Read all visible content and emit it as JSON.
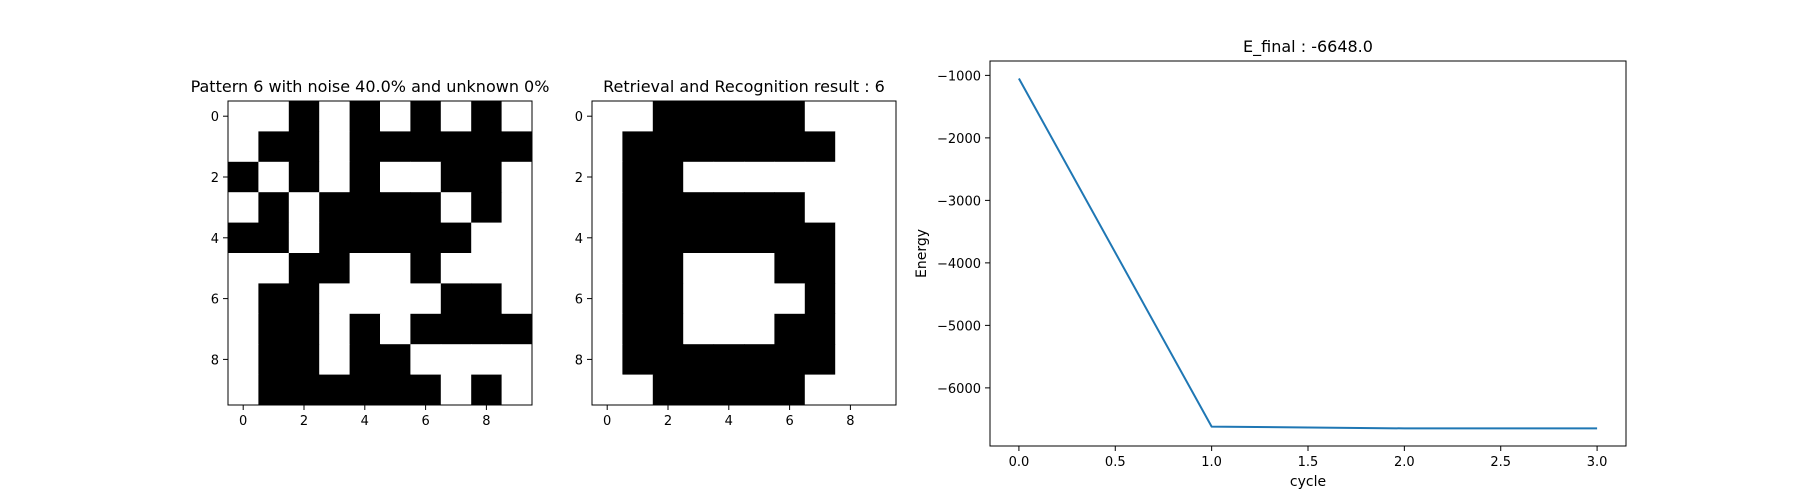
{
  "chart_data": [
    {
      "type": "heatmap",
      "title": "Pattern 6 with noise 40.0% and unknown 0%",
      "x_ticks": [
        0,
        2,
        4,
        6,
        8
      ],
      "y_ticks": [
        0,
        2,
        4,
        6,
        8
      ],
      "colors": {
        "1": "#000000",
        "0": "#ffffff"
      },
      "grid": [
        [
          0,
          0,
          1,
          0,
          1,
          0,
          1,
          0,
          1,
          0
        ],
        [
          0,
          1,
          1,
          0,
          1,
          1,
          1,
          1,
          1,
          1
        ],
        [
          1,
          0,
          1,
          0,
          1,
          0,
          0,
          1,
          1,
          0
        ],
        [
          0,
          1,
          0,
          1,
          1,
          1,
          1,
          0,
          1,
          0
        ],
        [
          1,
          1,
          0,
          1,
          1,
          1,
          1,
          1,
          0,
          0
        ],
        [
          0,
          0,
          1,
          1,
          0,
          0,
          1,
          0,
          0,
          0
        ],
        [
          0,
          1,
          1,
          0,
          0,
          0,
          0,
          1,
          1,
          0
        ],
        [
          0,
          1,
          1,
          0,
          1,
          0,
          1,
          1,
          1,
          1
        ],
        [
          0,
          1,
          1,
          0,
          1,
          1,
          0,
          0,
          0,
          0
        ],
        [
          0,
          1,
          1,
          1,
          1,
          1,
          1,
          0,
          1,
          0
        ]
      ]
    },
    {
      "type": "heatmap",
      "title": "Retrieval and Recognition result : 6",
      "x_ticks": [
        0,
        2,
        4,
        6,
        8
      ],
      "y_ticks": [
        0,
        2,
        4,
        6,
        8
      ],
      "colors": {
        "1": "#000000",
        "0": "#ffffff"
      },
      "grid": [
        [
          0,
          0,
          1,
          1,
          1,
          1,
          1,
          0,
          0,
          0
        ],
        [
          0,
          1,
          1,
          1,
          1,
          1,
          1,
          1,
          0,
          0
        ],
        [
          0,
          1,
          1,
          0,
          0,
          0,
          0,
          0,
          0,
          0
        ],
        [
          0,
          1,
          1,
          1,
          1,
          1,
          1,
          0,
          0,
          0
        ],
        [
          0,
          1,
          1,
          1,
          1,
          1,
          1,
          1,
          0,
          0
        ],
        [
          0,
          1,
          1,
          0,
          0,
          0,
          1,
          1,
          0,
          0
        ],
        [
          0,
          1,
          1,
          0,
          0,
          0,
          0,
          1,
          0,
          0
        ],
        [
          0,
          1,
          1,
          0,
          0,
          0,
          1,
          1,
          0,
          0
        ],
        [
          0,
          1,
          1,
          1,
          1,
          1,
          1,
          1,
          0,
          0
        ],
        [
          0,
          0,
          1,
          1,
          1,
          1,
          1,
          0,
          0,
          0
        ]
      ]
    },
    {
      "type": "line",
      "title": "E_final : -6648.0",
      "xlabel": "cycle",
      "ylabel": "Energy",
      "x": [
        0,
        1,
        2,
        3
      ],
      "series": [
        {
          "values": [
            -1050,
            -6620,
            -6648,
            -6648
          ],
          "color": "#1f77b4"
        }
      ],
      "xlim": [
        -0.15,
        3.15
      ],
      "ylim": [
        -6930,
        -770
      ],
      "x_ticks": [
        0,
        0.5,
        1,
        1.5,
        2,
        2.5,
        3
      ],
      "x_tick_labels": [
        "0.0",
        "0.5",
        "1.0",
        "1.5",
        "2.0",
        "2.5",
        "3.0"
      ],
      "y_ticks": [
        -1000,
        -2000,
        -3000,
        -4000,
        -5000,
        -6000
      ],
      "y_tick_labels": [
        "−1000",
        "−2000",
        "−3000",
        "−4000",
        "−5000",
        "−6000"
      ],
      "grid": false
    }
  ]
}
